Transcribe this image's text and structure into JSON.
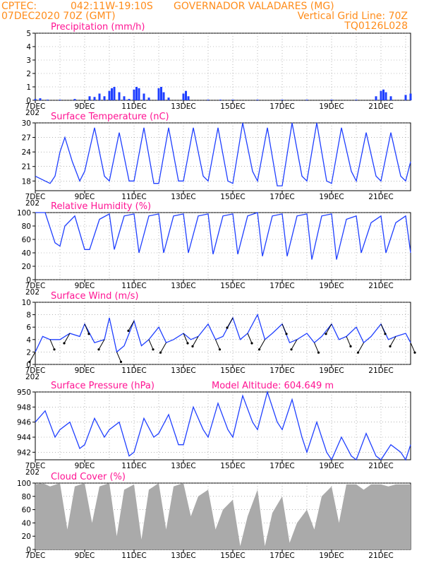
{
  "header": {
    "line1_left": "CPTEC:",
    "line1_coords": "042:11W-19:10S",
    "line1_location": "GOVERNADOR VALADARES (MG)",
    "line2_left": "07DEC2020 70Z (GMT)",
    "line2_right": "Vertical Grid Line: 70Z",
    "line3_right": "TQ0126L028"
  },
  "x_labels": [
    "7DEC",
    "9DEC",
    "11DEC",
    "13DEC",
    "15DEC",
    "17DEC",
    "19DEC",
    "21DEC"
  ],
  "year_fragment": "202",
  "model_altitude": "Model Altitude: 604.649 m",
  "colors": {
    "line": "#1f3fff",
    "bars": "#1f3fff",
    "cloud": "#aaaaaa",
    "header": "#ff8c1a",
    "title": "#ff1493"
  },
  "chart_data": [
    {
      "id": "precip",
      "type": "bar",
      "title": "Precipitation (mm/h)",
      "ylim": [
        0,
        5
      ],
      "yticks": [
        "0",
        "1",
        "2",
        "3",
        "4",
        "5"
      ],
      "x_range": [
        7,
        22.2
      ],
      "values": [
        [
          7.0,
          0.1
        ],
        [
          7.2,
          0.15
        ],
        [
          7.5,
          0.05
        ],
        [
          8.0,
          0.05
        ],
        [
          8.6,
          0.1
        ],
        [
          9.2,
          0.3
        ],
        [
          9.4,
          0.25
        ],
        [
          9.6,
          0.5
        ],
        [
          9.8,
          0.3
        ],
        [
          10.0,
          0.7
        ],
        [
          10.1,
          0.9
        ],
        [
          10.2,
          1.0
        ],
        [
          10.4,
          0.6
        ],
        [
          10.6,
          0.3
        ],
        [
          10.8,
          0.1
        ],
        [
          11.0,
          0.8
        ],
        [
          11.1,
          1.0
        ],
        [
          11.2,
          0.9
        ],
        [
          11.4,
          0.5
        ],
        [
          11.6,
          0.2
        ],
        [
          12.0,
          0.9
        ],
        [
          12.1,
          1.0
        ],
        [
          12.2,
          0.6
        ],
        [
          12.4,
          0.2
        ],
        [
          13.0,
          0.5
        ],
        [
          13.1,
          0.7
        ],
        [
          13.2,
          0.3
        ],
        [
          14.0,
          0.05
        ],
        [
          14.5,
          0.05
        ],
        [
          15.0,
          0.05
        ],
        [
          16.0,
          0.05
        ],
        [
          17.0,
          0.05
        ],
        [
          18.0,
          0.05
        ],
        [
          19.0,
          0.05
        ],
        [
          20.0,
          0.05
        ],
        [
          20.8,
          0.3
        ],
        [
          21.0,
          0.7
        ],
        [
          21.1,
          0.8
        ],
        [
          21.2,
          0.6
        ],
        [
          21.4,
          0.3
        ],
        [
          22.0,
          0.4
        ],
        [
          22.2,
          0.5
        ]
      ]
    },
    {
      "id": "temp",
      "type": "line",
      "title": "Surface Temperature (nC)",
      "ylim": [
        16,
        30
      ],
      "yticks": [
        "18",
        "21",
        "24",
        "27",
        "30"
      ],
      "ytick_values": [
        18,
        21,
        24,
        27,
        30
      ],
      "x_range": [
        7,
        22.2
      ],
      "x": [
        7.0,
        7.4,
        7.6,
        7.8,
        8.0,
        8.2,
        8.5,
        8.8,
        9.0,
        9.4,
        9.8,
        10.0,
        10.4,
        10.8,
        11.0,
        11.4,
        11.8,
        12.0,
        12.4,
        12.8,
        13.0,
        13.4,
        13.8,
        14.0,
        14.4,
        14.8,
        15.0,
        15.4,
        15.8,
        16.0,
        16.4,
        16.8,
        17.0,
        17.4,
        17.8,
        18.0,
        18.4,
        18.8,
        19.0,
        19.4,
        19.8,
        20.0,
        20.4,
        20.8,
        21.0,
        21.4,
        21.8,
        22.0,
        22.2
      ],
      "y": [
        19,
        18,
        17.5,
        19,
        24,
        27,
        22,
        18,
        20,
        29,
        19,
        18,
        28,
        18,
        18,
        29,
        17.5,
        17.5,
        29,
        18,
        18,
        29,
        19,
        18,
        29,
        18,
        17.5,
        30,
        20,
        18,
        29,
        17,
        17,
        30,
        19,
        18,
        30,
        18,
        17.5,
        29,
        20,
        18,
        28,
        19,
        18,
        28,
        19,
        18,
        22
      ]
    },
    {
      "id": "rh",
      "type": "line",
      "title": "Relative Humidity (%)",
      "ylim": [
        0,
        100
      ],
      "yticks": [
        "0",
        "20",
        "40",
        "60",
        "80",
        "100"
      ],
      "ytick_values": [
        0,
        20,
        40,
        60,
        80,
        100
      ],
      "x_range": [
        7,
        22.2
      ],
      "x": [
        7.0,
        7.4,
        7.8,
        8.0,
        8.2,
        8.6,
        9.0,
        9.2,
        9.6,
        10.0,
        10.2,
        10.6,
        11.0,
        11.2,
        11.6,
        12.0,
        12.2,
        12.6,
        13.0,
        13.2,
        13.6,
        14.0,
        14.2,
        14.6,
        15.0,
        15.2,
        15.6,
        16.0,
        16.2,
        16.6,
        17.0,
        17.2,
        17.6,
        18.0,
        18.2,
        18.6,
        19.0,
        19.2,
        19.6,
        20.0,
        20.2,
        20.6,
        21.0,
        21.2,
        21.6,
        22.0,
        22.2
      ],
      "y": [
        100,
        100,
        55,
        50,
        80,
        95,
        45,
        45,
        90,
        98,
        45,
        95,
        98,
        40,
        95,
        98,
        40,
        95,
        98,
        40,
        95,
        98,
        38,
        95,
        98,
        38,
        95,
        100,
        35,
        95,
        98,
        35,
        95,
        98,
        30,
        95,
        98,
        30,
        90,
        95,
        40,
        85,
        95,
        40,
        85,
        95,
        40
      ]
    },
    {
      "id": "wind",
      "type": "line",
      "title": "Surface Wind (m/s)",
      "ylim": [
        0,
        10
      ],
      "yticks": [
        "0",
        "2",
        "4",
        "6",
        "8",
        "10"
      ],
      "ytick_values": [
        0,
        2,
        4,
        6,
        8,
        10
      ],
      "x_range": [
        7,
        22.2
      ],
      "x": [
        7.0,
        7.3,
        7.6,
        8.0,
        8.4,
        8.8,
        9.0,
        9.4,
        9.8,
        10.0,
        10.3,
        10.6,
        11.0,
        11.3,
        11.6,
        12.0,
        12.3,
        12.6,
        13.0,
        13.3,
        13.6,
        14.0,
        14.3,
        14.6,
        15.0,
        15.3,
        15.6,
        16.0,
        16.3,
        16.6,
        17.0,
        17.3,
        17.6,
        18.0,
        18.3,
        18.6,
        19.0,
        19.3,
        19.6,
        20.0,
        20.3,
        20.6,
        21.0,
        21.3,
        21.6,
        22.0,
        22.2
      ],
      "y": [
        2,
        4.5,
        4,
        4,
        5,
        4.5,
        6.5,
        3.5,
        4,
        7.5,
        2,
        3,
        7,
        3,
        4,
        6,
        3.5,
        4,
        5,
        4,
        4.5,
        6.5,
        4,
        4.5,
        7.5,
        4,
        5,
        8,
        4,
        5,
        6.5,
        3.5,
        4,
        5,
        3.5,
        4.5,
        6.5,
        4,
        4.5,
        6,
        3.5,
        4.5,
        6.5,
        4,
        4.5,
        5,
        3.5
      ]
    },
    {
      "id": "pres",
      "type": "line",
      "title": "Surface Pressure (hPa)",
      "ylim": [
        941,
        950
      ],
      "yticks": [
        "942",
        "944",
        "946",
        "948",
        "950"
      ],
      "ytick_values": [
        942,
        944,
        946,
        948,
        950
      ],
      "x_range": [
        7,
        22.2
      ],
      "x": [
        7.0,
        7.4,
        7.8,
        8.0,
        8.4,
        8.8,
        9.0,
        9.4,
        9.8,
        10.0,
        10.4,
        10.8,
        11.0,
        11.4,
        11.8,
        12.0,
        12.4,
        12.8,
        13.0,
        13.4,
        13.8,
        14.0,
        14.4,
        14.8,
        15.0,
        15.4,
        15.8,
        16.0,
        16.4,
        16.8,
        17.0,
        17.4,
        17.8,
        18.0,
        18.4,
        18.8,
        19.0,
        19.4,
        19.8,
        20.0,
        20.4,
        20.8,
        21.0,
        21.4,
        21.8,
        22.0,
        22.2
      ],
      "y": [
        946,
        947.5,
        944,
        945,
        946,
        942.5,
        943,
        946.5,
        944,
        945,
        946,
        941.5,
        942,
        946.5,
        944,
        944.5,
        947,
        943,
        943,
        948,
        945,
        944,
        948.5,
        945,
        944,
        949.5,
        946,
        945,
        950,
        946,
        945,
        949,
        944,
        942,
        946,
        942,
        941,
        944,
        941.5,
        941,
        944.5,
        941.5,
        941,
        943,
        942,
        941,
        943
      ]
    },
    {
      "id": "cloud",
      "type": "area",
      "title": "Cloud Cover (%)",
      "ylim": [
        0,
        100
      ],
      "yticks": [
        "0",
        "20",
        "40",
        "60",
        "80",
        "100"
      ],
      "ytick_values": [
        0,
        20,
        40,
        60,
        80,
        100
      ],
      "x_range": [
        7,
        22.2
      ],
      "x": [
        7.0,
        7.3,
        7.6,
        8.0,
        8.3,
        8.6,
        9.0,
        9.3,
        9.6,
        10.0,
        10.3,
        10.6,
        11.0,
        11.3,
        11.6,
        12.0,
        12.3,
        12.6,
        13.0,
        13.3,
        13.6,
        14.0,
        14.3,
        14.6,
        15.0,
        15.3,
        15.6,
        16.0,
        16.3,
        16.6,
        17.0,
        17.3,
        17.6,
        18.0,
        18.3,
        18.6,
        19.0,
        19.3,
        19.6,
        20.0,
        20.3,
        20.6,
        21.0,
        21.3,
        21.6,
        22.0,
        22.2
      ],
      "y": [
        98,
        100,
        95,
        100,
        30,
        95,
        100,
        40,
        95,
        100,
        20,
        90,
        98,
        15,
        90,
        100,
        30,
        95,
        100,
        50,
        80,
        90,
        30,
        60,
        75,
        5,
        50,
        90,
        5,
        55,
        80,
        10,
        40,
        60,
        30,
        80,
        95,
        40,
        98,
        98,
        90,
        98,
        98,
        95,
        98,
        98,
        98
      ]
    }
  ]
}
